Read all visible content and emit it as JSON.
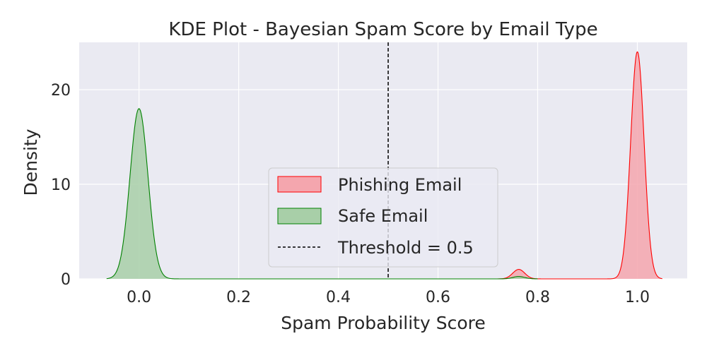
{
  "chart_data": {
    "type": "area",
    "title": "KDE Plot - Bayesian Spam Score by Email Type",
    "xlabel": "Spam Probability Score",
    "ylabel": "Density",
    "xlim": [
      -0.12,
      1.1
    ],
    "ylim": [
      0,
      25
    ],
    "x_ticks": [
      "0.0",
      "0.2",
      "0.4",
      "0.6",
      "0.8",
      "1.0"
    ],
    "y_ticks": [
      "0",
      "10",
      "20"
    ],
    "grid": true,
    "legend_position": "lower center",
    "background": "#eaeaf2",
    "series": [
      {
        "name": "Phishing Email",
        "line_color": "#ff0000",
        "fill_color": "#f4a6ae",
        "peaks": [
          {
            "center": 1.0,
            "height": 24.0,
            "sigma": 0.0135
          },
          {
            "center": 0.762,
            "height": 1.0,
            "sigma": 0.012
          }
        ],
        "x_range": [
          0.72,
          1.05
        ]
      },
      {
        "name": "Safe Email",
        "line_color": "#008000",
        "fill_color": "#a8cfa8",
        "peaks": [
          {
            "center": 0.0,
            "height": 18.0,
            "sigma": 0.018
          },
          {
            "center": 0.762,
            "height": 0.25,
            "sigma": 0.012
          }
        ],
        "x_range": [
          -0.065,
          0.8
        ]
      }
    ],
    "threshold": {
      "label": "Threshold = 0.5",
      "x": 0.5,
      "color": "#000000"
    }
  }
}
